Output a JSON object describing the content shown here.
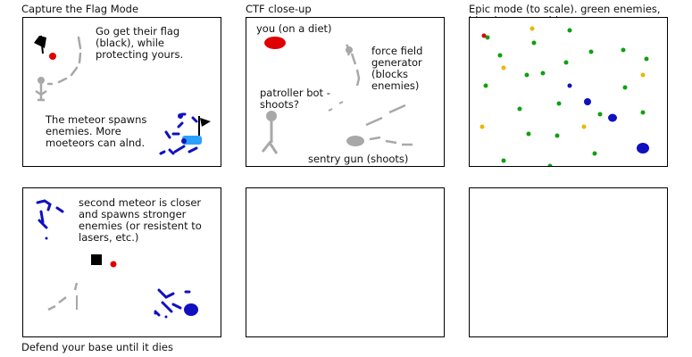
{
  "panels": [
    {
      "title": "Capture the Flag Mode",
      "notes": [
        "Go get their flag (black), while protecting yours.",
        "The meteor spawns enemies. More moeteors can alnd."
      ]
    },
    {
      "title": "CTF close-up",
      "notes": [
        "you (on a diet)",
        "force field generator (blocks enemies)",
        "patroller bot - shoots?",
        "sentry gun (shoots)"
      ]
    },
    {
      "title": "Epic mode (to scale). green enemies, blue bosses, gold power-ups (permanent) you pick up.",
      "notes": []
    },
    {
      "title": "",
      "notes": [
        "second meteor is closer and spawns stronger enemies (or resistent to lasers, etc.)"
      ]
    },
    {
      "title": "",
      "notes": []
    },
    {
      "title": "",
      "notes": []
    }
  ],
  "caption": "Defend your base until it dies",
  "colors": {
    "black_flag": "#000000",
    "player": "#e00000",
    "gray_sketch": "#a8a8a8",
    "enemy_blue": "#1010c0",
    "base_blue": "#2aa0ff",
    "green_enemy": "#10a010",
    "gold_powerup": "#e8b800"
  }
}
